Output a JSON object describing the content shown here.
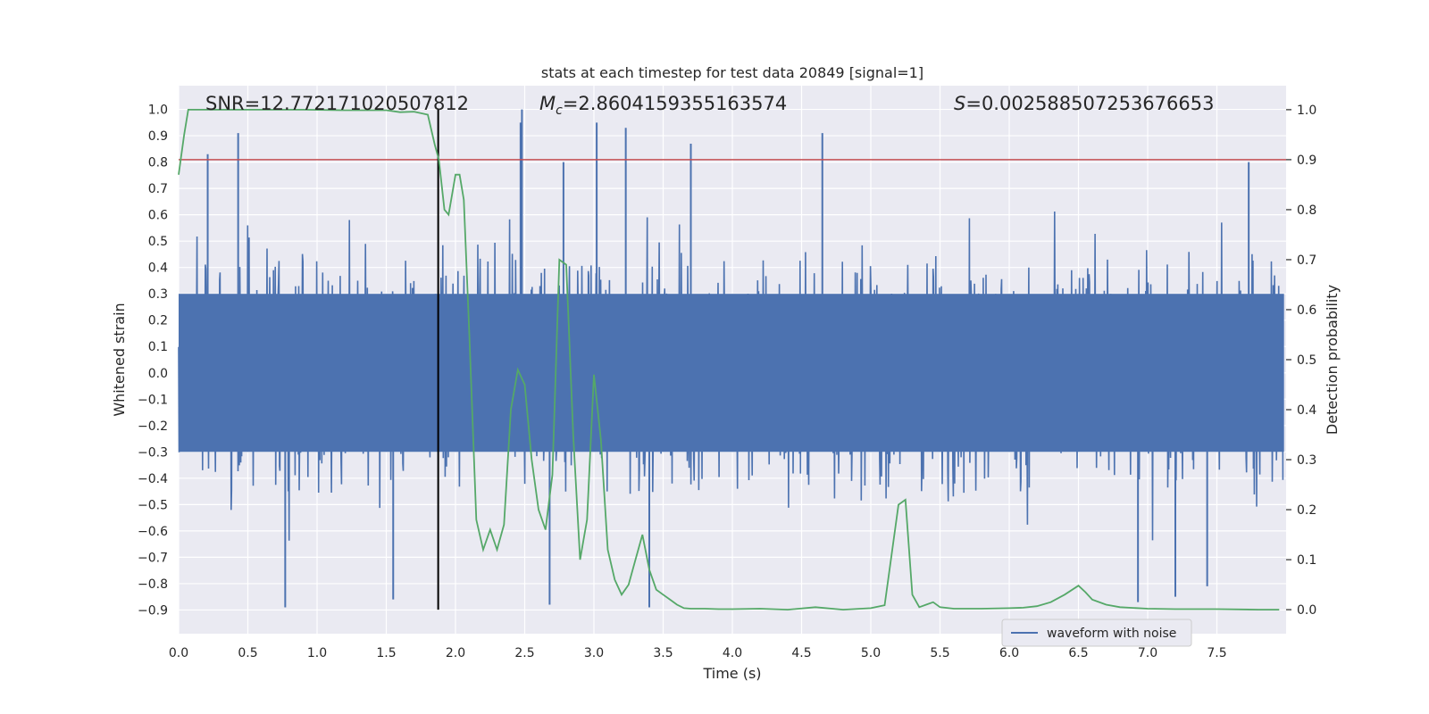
{
  "chart_data": {
    "type": "line",
    "title": "stats at each timestep for test data 20849 [signal=1]",
    "xlabel": "Time (s)",
    "ylabel": "Whitened strain",
    "y2label": "Detection probability",
    "xlim": [
      0.0,
      8.0
    ],
    "ylim": [
      -0.99,
      1.09
    ],
    "y2lim": [
      -0.048,
      1.048
    ],
    "x_ticks": [
      0.0,
      0.5,
      1.0,
      1.5,
      2.0,
      2.5,
      3.0,
      3.5,
      4.0,
      4.5,
      5.0,
      5.5,
      6.0,
      6.5,
      7.0,
      7.5
    ],
    "x_tick_labels": [
      "0.0",
      "0.5",
      "1.0",
      "1.5",
      "2.0",
      "2.5",
      "3.0",
      "3.5",
      "4.0",
      "4.5",
      "5.0",
      "5.5",
      "6.0",
      "6.5",
      "7.0",
      "7.5"
    ],
    "y_ticks": [
      -0.9,
      -0.8,
      -0.7,
      -0.6,
      -0.5,
      -0.4,
      -0.3,
      -0.2,
      -0.1,
      0.0,
      0.1,
      0.2,
      0.3,
      0.4,
      0.5,
      0.6,
      0.7,
      0.8,
      0.9,
      1.0
    ],
    "y_tick_labels": [
      "−0.9",
      "−0.8",
      "−0.7",
      "−0.6",
      "−0.5",
      "−0.4",
      "−0.3",
      "−0.2",
      "−0.1",
      "0.0",
      "0.1",
      "0.2",
      "0.3",
      "0.4",
      "0.5",
      "0.6",
      "0.7",
      "0.8",
      "0.9",
      "1.0"
    ],
    "y2_ticks": [
      0.0,
      0.1,
      0.2,
      0.3,
      0.4,
      0.5,
      0.6,
      0.7,
      0.8,
      0.9,
      1.0
    ],
    "y2_tick_labels": [
      "0.0",
      "0.1",
      "0.2",
      "0.3",
      "0.4",
      "0.5",
      "0.6",
      "0.7",
      "0.8",
      "0.9",
      "1.0"
    ],
    "grid": true,
    "legend_position": "lower-right",
    "annotations": {
      "snr": "SNR=12.772171020507812",
      "mc_symbol": "M",
      "mc_subscript": "c",
      "mc_value": "=2.8604159355163574",
      "s_symbol": "S",
      "s_value": "=0.002588507253676653"
    },
    "threshold_y2": 0.9,
    "vertical_marker_x": 1.875,
    "waveform": {
      "name": "waveform with noise",
      "color": "#4c72b0",
      "axis": "left",
      "envelope_note": "dense noise; peak spikes listed",
      "spikes": [
        {
          "x": 0.43,
          "y": 0.91
        },
        {
          "x": 0.21,
          "y": 0.83
        },
        {
          "x": 0.77,
          "y": -0.89
        },
        {
          "x": 1.55,
          "y": -0.86
        },
        {
          "x": 2.48,
          "y": 1.0
        },
        {
          "x": 2.47,
          "y": 0.95
        },
        {
          "x": 2.78,
          "y": 0.8
        },
        {
          "x": 3.02,
          "y": 0.95
        },
        {
          "x": 3.23,
          "y": 0.93
        },
        {
          "x": 3.4,
          "y": -0.89
        },
        {
          "x": 3.7,
          "y": 0.87
        },
        {
          "x": 4.65,
          "y": 0.91
        },
        {
          "x": 2.68,
          "y": -0.88
        },
        {
          "x": 7.2,
          "y": -0.85
        },
        {
          "x": 7.43,
          "y": -0.81
        },
        {
          "x": 7.73,
          "y": 0.8
        },
        {
          "x": 6.93,
          "y": -0.87
        }
      ]
    },
    "detection_probability": {
      "color": "#55a868",
      "axis": "right",
      "x": [
        0.0,
        0.04,
        0.07,
        0.1,
        0.3,
        0.6,
        0.9,
        1.2,
        1.5,
        1.6,
        1.7,
        1.8,
        1.85,
        1.88,
        1.92,
        1.95,
        2.0,
        2.03,
        2.06,
        2.1,
        2.15,
        2.2,
        2.25,
        2.3,
        2.35,
        2.4,
        2.45,
        2.5,
        2.55,
        2.6,
        2.65,
        2.7,
        2.75,
        2.8,
        2.85,
        2.9,
        2.95,
        3.0,
        3.05,
        3.1,
        3.15,
        3.2,
        3.25,
        3.3,
        3.35,
        3.4,
        3.45,
        3.5,
        3.55,
        3.6,
        3.65,
        3.7,
        3.8,
        3.9,
        4.0,
        4.2,
        4.4,
        4.6,
        4.8,
        5.0,
        5.1,
        5.15,
        5.2,
        5.25,
        5.3,
        5.35,
        5.4,
        5.45,
        5.5,
        5.6,
        5.8,
        6.0,
        6.1,
        6.2,
        6.3,
        6.4,
        6.5,
        6.55,
        6.6,
        6.7,
        6.8,
        7.0,
        7.2,
        7.5,
        7.8,
        7.95
      ],
      "y": [
        0.87,
        0.95,
        1.0,
        1.0,
        1.0,
        1.0,
        1.0,
        0.999,
        0.999,
        0.995,
        0.996,
        0.99,
        0.93,
        0.9,
        0.8,
        0.79,
        0.87,
        0.87,
        0.82,
        0.55,
        0.18,
        0.12,
        0.16,
        0.12,
        0.17,
        0.4,
        0.48,
        0.45,
        0.3,
        0.2,
        0.16,
        0.27,
        0.7,
        0.69,
        0.35,
        0.1,
        0.18,
        0.47,
        0.34,
        0.12,
        0.06,
        0.03,
        0.05,
        0.1,
        0.15,
        0.08,
        0.04,
        0.03,
        0.02,
        0.01,
        0.003,
        0.002,
        0.002,
        0.001,
        0.001,
        0.002,
        0.0,
        0.005,
        0.0,
        0.003,
        0.009,
        0.11,
        0.21,
        0.22,
        0.03,
        0.005,
        0.01,
        0.015,
        0.005,
        0.002,
        0.002,
        0.003,
        0.004,
        0.007,
        0.015,
        0.03,
        0.048,
        0.035,
        0.02,
        0.01,
        0.005,
        0.002,
        0.001,
        0.001,
        0.0,
        0.0
      ]
    }
  }
}
